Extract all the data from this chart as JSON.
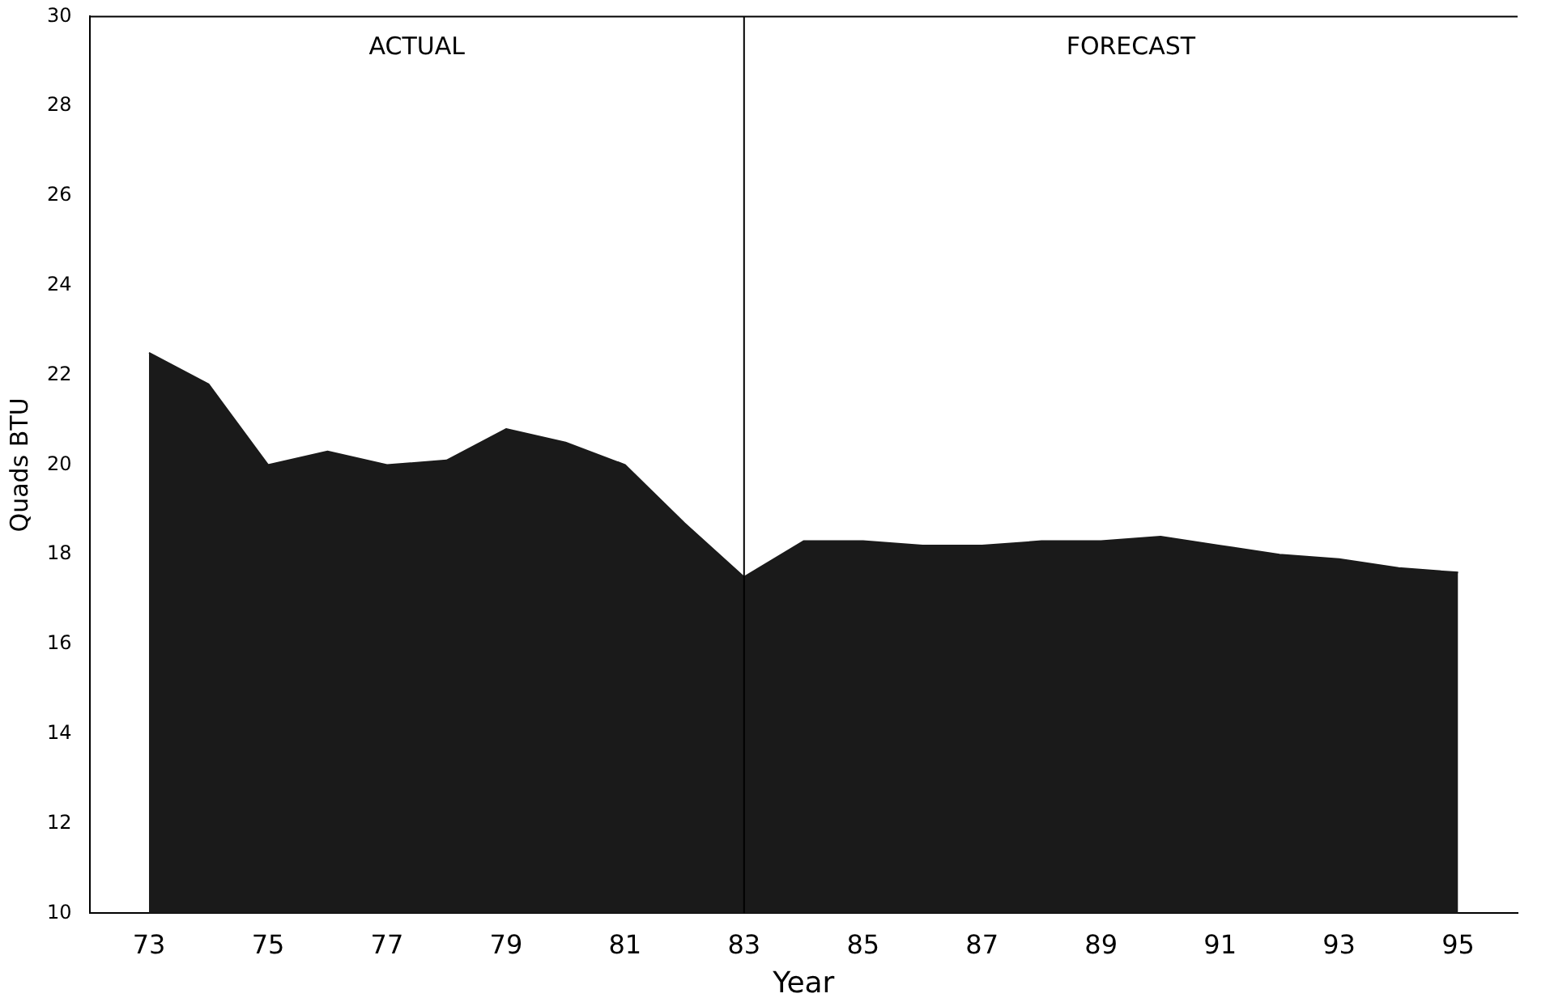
{
  "chart_data": {
    "type": "area",
    "xlabel": "Year",
    "ylabel": "Quads BTU",
    "annotations": [
      "ACTUAL",
      "FORECAST"
    ],
    "x": [
      73,
      74,
      75,
      76,
      77,
      78,
      79,
      80,
      81,
      82,
      83,
      84,
      85,
      86,
      87,
      88,
      89,
      90,
      91,
      92,
      93,
      94,
      95
    ],
    "series": [
      {
        "color": "#1a1a1a",
        "values": [
          22.5,
          21.8,
          20.0,
          20.3,
          20.0,
          20.1,
          20.8,
          20.5,
          20.0,
          18.7,
          17.5,
          18.3,
          18.3,
          18.2,
          18.2,
          18.3,
          18.3,
          18.4,
          18.2,
          18.0,
          17.9,
          17.7,
          17.6
        ]
      }
    ],
    "xlim": [
      72,
      96
    ],
    "xticks": [
      73,
      75,
      77,
      79,
      81,
      83,
      85,
      87,
      89,
      91,
      93,
      95
    ],
    "ylim": [
      10,
      30
    ],
    "yticks": [
      10,
      12,
      14,
      16,
      18,
      20,
      22,
      24,
      26,
      28,
      30
    ],
    "ref_lines": [
      {
        "axis": "x",
        "value": 83
      }
    ],
    "grid": false,
    "legend": false
  }
}
